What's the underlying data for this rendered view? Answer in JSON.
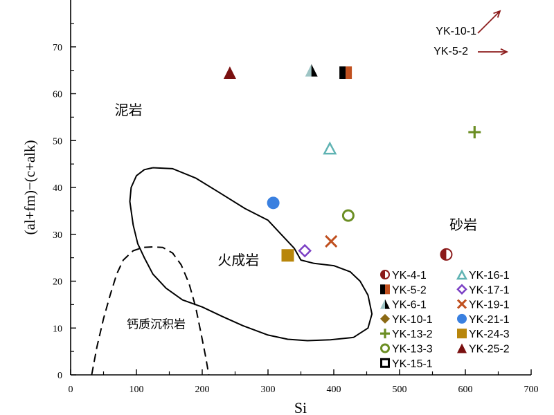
{
  "chart_data": {
    "type": "scatter",
    "xlabel": "Si",
    "ylabel": "(al+fm)−(c+alk)",
    "xlim": [
      0,
      700
    ],
    "ylim": [
      0,
      80
    ],
    "x_ticks": [
      0,
      100,
      200,
      300,
      400,
      500,
      600,
      700
    ],
    "y_ticks": [
      0,
      10,
      20,
      30,
      40,
      50,
      60,
      70
    ],
    "grid": false,
    "legend_position": "bottom-right",
    "series": [
      {
        "name": "YK-4-1",
        "marker": "circle-half",
        "color": "#8b1a1a",
        "x": 571,
        "y": 25.7
      },
      {
        "name": "YK-5-2",
        "marker": "square-half",
        "color": "#c0501f",
        "x": 418,
        "y": 64.5
      },
      {
        "name": "YK-6-1",
        "marker": "triangle-half",
        "color": "#9ec5c5",
        "x": 366,
        "y": 65.0
      },
      {
        "name": "YK-10-1",
        "marker": "diamond",
        "color": "#8b6914",
        "x": null,
        "y": null
      },
      {
        "name": "YK-13-2",
        "marker": "plus",
        "color": "#6b8e23",
        "x": 614,
        "y": 51.8
      },
      {
        "name": "YK-13-3",
        "marker": "circle-open",
        "color": "#6b8e23",
        "x": 422,
        "y": 34.0
      },
      {
        "name": "YK-15-1",
        "marker": "square-open",
        "color": "#000000",
        "x": null,
        "y": null
      },
      {
        "name": "YK-16-1",
        "marker": "triangle-open",
        "color": "#5fb3b3",
        "x": 394,
        "y": 48.4
      },
      {
        "name": "YK-17-1",
        "marker": "diamond-open",
        "color": "#7b3fc4",
        "x": 356,
        "y": 26.5
      },
      {
        "name": "YK-19-1",
        "marker": "x",
        "color": "#c0501f",
        "x": 396,
        "y": 28.5
      },
      {
        "name": "YK-21-1",
        "marker": "circle",
        "color": "#3a80e0",
        "x": 308,
        "y": 36.7
      },
      {
        "name": "YK-24-3",
        "marker": "square",
        "color": "#b8860b",
        "x": 330,
        "y": 25.5
      },
      {
        "name": "YK-25-2",
        "marker": "triangle",
        "color": "#7a1010",
        "x": 242,
        "y": 64.5
      }
    ],
    "offscale_annotations": [
      {
        "label": "YK-10-1",
        "direction": "up-right",
        "color": "#8b1a1a"
      },
      {
        "label": "YK-5-2",
        "direction": "right",
        "color": "#8b1a1a"
      }
    ],
    "regions": [
      {
        "label": "火成岩",
        "style": "solid",
        "label_at": [
          255,
          23.5
        ],
        "boundary": [
          [
            125,
            44.2
          ],
          [
            112,
            43.8
          ],
          [
            100,
            42.5
          ],
          [
            92,
            40
          ],
          [
            90,
            37
          ],
          [
            95,
            32
          ],
          [
            102,
            28
          ],
          [
            112,
            25
          ],
          [
            125,
            21.5
          ],
          [
            145,
            18.5
          ],
          [
            170,
            16
          ],
          [
            200,
            14.5
          ],
          [
            230,
            12.5
          ],
          [
            262,
            10.5
          ],
          [
            300,
            8.5
          ],
          [
            330,
            7.6
          ],
          [
            360,
            7.3
          ],
          [
            395,
            7.5
          ],
          [
            430,
            8
          ],
          [
            452,
            10
          ],
          [
            458,
            13
          ],
          [
            452,
            17
          ],
          [
            440,
            20
          ],
          [
            425,
            22
          ],
          [
            400,
            23.3
          ],
          [
            370,
            23.8
          ],
          [
            350,
            24.5
          ],
          [
            340,
            27
          ],
          [
            320,
            30
          ],
          [
            300,
            33
          ],
          [
            265,
            35.5
          ],
          [
            225,
            39
          ],
          [
            190,
            42
          ],
          [
            155,
            44
          ],
          [
            125,
            44.2
          ]
        ]
      },
      {
        "label": "钙质沉积岩",
        "style": "dashed",
        "label_at": [
          130,
          10
        ],
        "boundary": [
          [
            32,
            0
          ],
          [
            40,
            6
          ],
          [
            50,
            12
          ],
          [
            60,
            17
          ],
          [
            70,
            21.5
          ],
          [
            80,
            24.5
          ],
          [
            95,
            26.5
          ],
          [
            110,
            27.2
          ],
          [
            125,
            27.3
          ],
          [
            140,
            27.2
          ],
          [
            155,
            26
          ],
          [
            168,
            23.5
          ],
          [
            180,
            19.5
          ],
          [
            190,
            14.5
          ],
          [
            198,
            9
          ],
          [
            205,
            4
          ],
          [
            210,
            0
          ]
        ]
      },
      {
        "label": "泥岩",
        "label_at": [
          88,
          55.5
        ]
      },
      {
        "label": "砂岩",
        "label_at": [
          597,
          31
        ]
      }
    ]
  }
}
